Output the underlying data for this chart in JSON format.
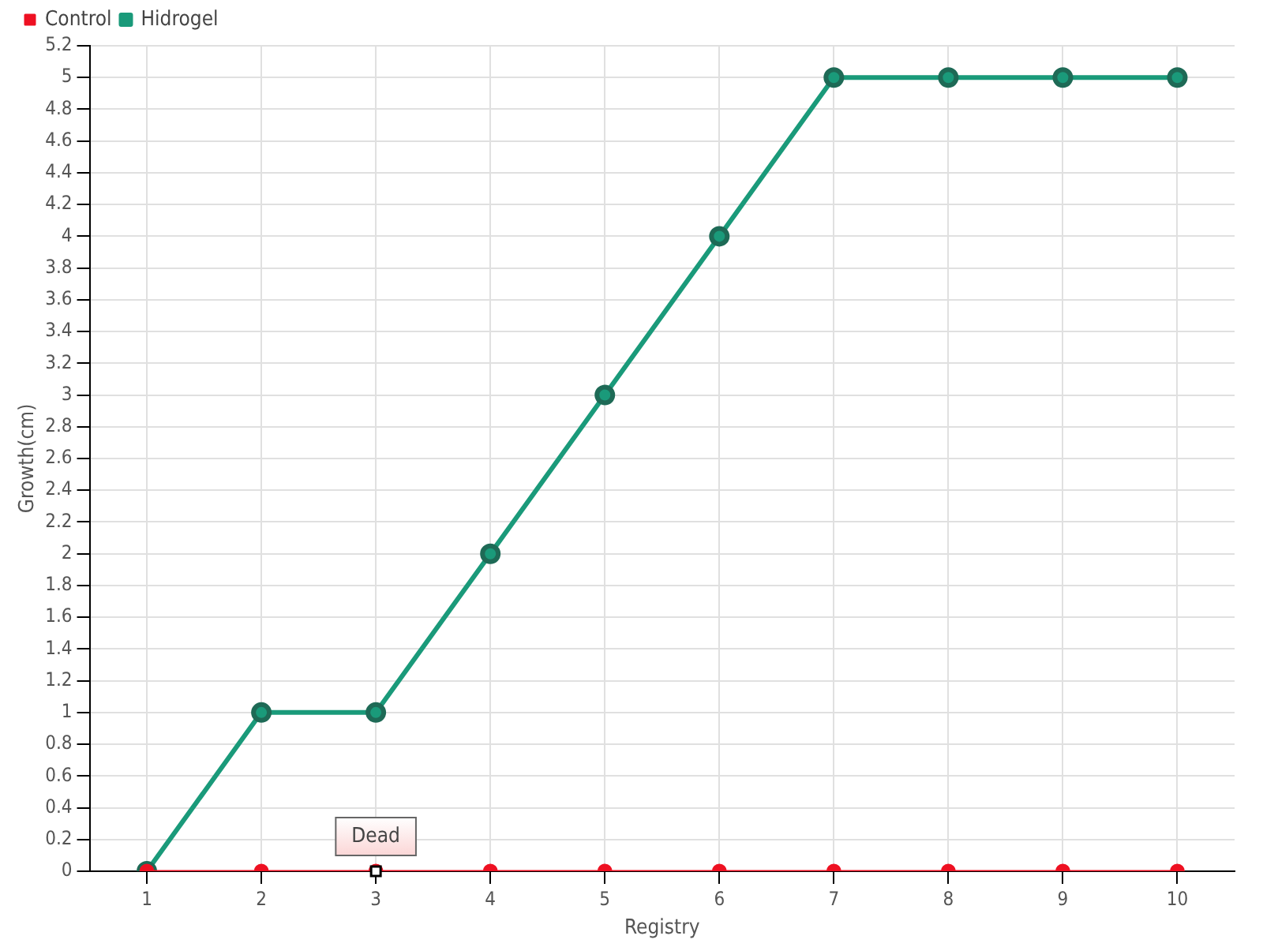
{
  "chart_data": {
    "type": "line",
    "xlabel": "Registry",
    "ylabel": "Growth(cm)",
    "categories": [
      "1",
      "2",
      "3",
      "4",
      "5",
      "6",
      "7",
      "8",
      "9",
      "10"
    ],
    "series": [
      {
        "name": "Hidrogel",
        "color": "#1a9a7a",
        "values": [
          0,
          1,
          1,
          2,
          3,
          4,
          5,
          5,
          5,
          5
        ]
      },
      {
        "name": "Control",
        "color": "#ee1122",
        "values": [
          0,
          0,
          0,
          0,
          0,
          0,
          0,
          0,
          0,
          0
        ]
      }
    ],
    "ylim": [
      0,
      5.2
    ],
    "yticks": [
      0,
      0.2,
      0.4,
      0.6,
      0.8,
      1,
      1.2,
      1.4,
      1.6,
      1.8,
      2,
      2.2,
      2.4,
      2.6,
      2.8,
      3,
      3.2,
      3.4,
      3.6,
      3.8,
      4,
      4.2,
      4.4,
      4.6,
      4.8,
      5,
      5.2
    ],
    "annotations": [
      {
        "text": "Dead",
        "x": "3",
        "y": 0
      }
    ],
    "grid": true,
    "legend": "top left",
    "marker": "circle",
    "line_style": "solid"
  }
}
